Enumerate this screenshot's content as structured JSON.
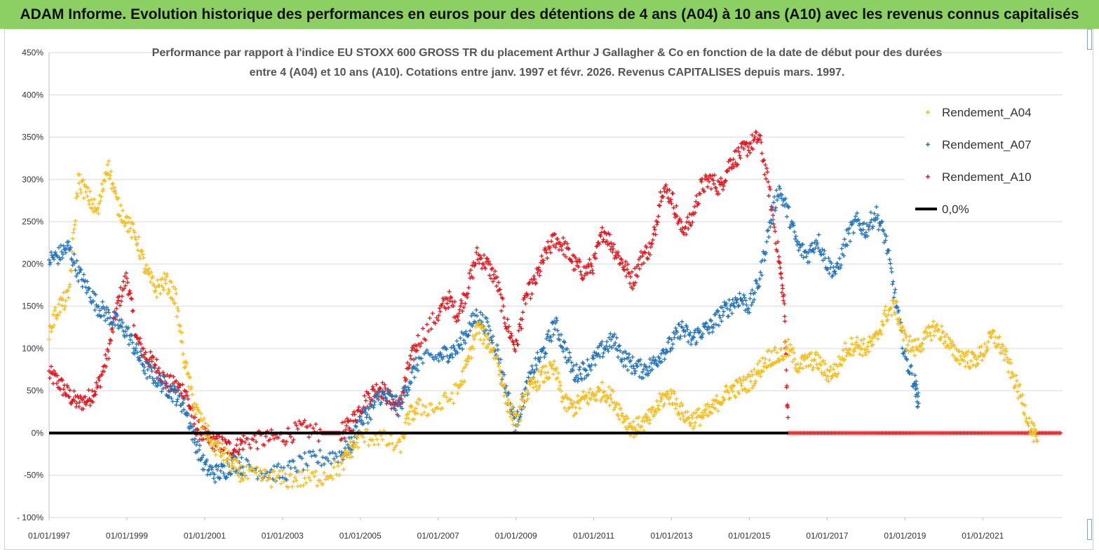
{
  "banner": {
    "title": "ADAM Informe. Evolution historique des performances en euros pour des détentions de 4 ans (A04) à 10 ans (A10) avec les revenus connus capitalisés"
  },
  "chart_data": {
    "type": "scatter",
    "title_lines": [
      "Performance par rapport à l'indice EU STOXX 600 GROSS TR  du placement Arthur J Gallagher & Co en fonction de la date de début pour des durées",
      "entre 4 (A04) et 10 ans (A10). Cotations entre janv. 1997 et févr. 2026. Revenus CAPITALISES depuis mars. 1997."
    ],
    "xlabel": "",
    "ylabel": "",
    "x_range": [
      1997.0,
      2023.05
    ],
    "ylim": [
      -100,
      450
    ],
    "y_ticks": [
      -100,
      -50,
      0,
      50,
      100,
      150,
      200,
      250,
      300,
      350,
      400,
      450
    ],
    "y_tick_labels": [
      "- 100%",
      "-50%",
      "0%",
      "50%",
      "100%",
      "150%",
      "200%",
      "250%",
      "300%",
      "350%",
      "400%",
      "450%"
    ],
    "x_ticks": [
      1997,
      1999,
      2001,
      2003,
      2005,
      2007,
      2009,
      2011,
      2013,
      2015,
      2017,
      2019,
      2021
    ],
    "x_tick_labels": [
      "01/01/1997",
      "01/01/1999",
      "01/01/2001",
      "01/01/2003",
      "01/01/2005",
      "01/01/2007",
      "01/01/2009",
      "01/01/2011",
      "01/01/2013",
      "01/01/2015",
      "01/01/2017",
      "01/01/2019",
      "01/01/2021"
    ],
    "legend_position": "top-right",
    "series": [
      {
        "name": "Rendement_A04",
        "color": "#f5bd1f",
        "marker": "plus",
        "points": [
          [
            1997.0,
            120
          ],
          [
            1997.25,
            150
          ],
          [
            1997.5,
            160
          ],
          [
            1997.75,
            300
          ],
          [
            1998.0,
            280
          ],
          [
            1998.25,
            260
          ],
          [
            1998.5,
            320
          ],
          [
            1998.75,
            270
          ],
          [
            1999.0,
            250
          ],
          [
            1999.25,
            230
          ],
          [
            1999.5,
            190
          ],
          [
            1999.75,
            170
          ],
          [
            2000.0,
            180
          ],
          [
            2000.25,
            160
          ],
          [
            2000.5,
            80
          ],
          [
            2000.75,
            30
          ],
          [
            2001.0,
            5
          ],
          [
            2001.25,
            -15
          ],
          [
            2001.5,
            -25
          ],
          [
            2001.75,
            -40
          ],
          [
            2002.0,
            -50
          ],
          [
            2002.5,
            -52
          ],
          [
            2003.0,
            -55
          ],
          [
            2003.5,
            -55
          ],
          [
            2004.0,
            -52
          ],
          [
            2004.5,
            -40
          ],
          [
            2004.75,
            -20
          ],
          [
            2005.0,
            -5
          ],
          [
            2005.5,
            -5
          ],
          [
            2006.0,
            -18
          ],
          [
            2006.25,
            20
          ],
          [
            2006.5,
            30
          ],
          [
            2007.0,
            30
          ],
          [
            2007.5,
            50
          ],
          [
            2007.75,
            80
          ],
          [
            2008.0,
            125
          ],
          [
            2008.25,
            110
          ],
          [
            2008.5,
            90
          ],
          [
            2008.75,
            40
          ],
          [
            2009.0,
            10
          ],
          [
            2009.25,
            45
          ],
          [
            2009.5,
            60
          ],
          [
            2009.75,
            70
          ],
          [
            2010.0,
            75
          ],
          [
            2010.25,
            35
          ],
          [
            2010.5,
            30
          ],
          [
            2010.75,
            40
          ],
          [
            2011.0,
            45
          ],
          [
            2011.25,
            50
          ],
          [
            2011.5,
            40
          ],
          [
            2011.75,
            20
          ],
          [
            2012.0,
            5
          ],
          [
            2012.25,
            10
          ],
          [
            2012.5,
            20
          ],
          [
            2012.75,
            40
          ],
          [
            2013.0,
            45
          ],
          [
            2013.25,
            25
          ],
          [
            2013.5,
            15
          ],
          [
            2013.75,
            20
          ],
          [
            2014.0,
            25
          ],
          [
            2014.25,
            40
          ],
          [
            2014.5,
            50
          ],
          [
            2014.75,
            55
          ],
          [
            2015.0,
            60
          ],
          [
            2015.25,
            75
          ],
          [
            2015.5,
            90
          ],
          [
            2015.75,
            90
          ],
          [
            2016.0,
            100
          ],
          [
            2016.25,
            80
          ],
          [
            2016.5,
            85
          ],
          [
            2016.75,
            85
          ],
          [
            2017.0,
            70
          ],
          [
            2017.25,
            75
          ],
          [
            2017.5,
            100
          ],
          [
            2017.75,
            105
          ],
          [
            2018.0,
            100
          ],
          [
            2018.25,
            110
          ],
          [
            2018.5,
            140
          ],
          [
            2018.75,
            150
          ],
          [
            2019.0,
            110
          ],
          [
            2019.25,
            100
          ],
          [
            2019.5,
            110
          ],
          [
            2019.75,
            125
          ],
          [
            2020.0,
            115
          ],
          [
            2020.25,
            95
          ],
          [
            2020.5,
            90
          ],
          [
            2020.75,
            85
          ],
          [
            2021.0,
            95
          ],
          [
            2021.25,
            115
          ],
          [
            2021.5,
            100
          ],
          [
            2021.75,
            70
          ],
          [
            2022.0,
            40
          ],
          [
            2022.25,
            5
          ],
          [
            2022.4,
            -10
          ]
        ]
      },
      {
        "name": "Rendement_A07",
        "color": "#2474bc",
        "marker": "plus",
        "points": [
          [
            1997.0,
            205
          ],
          [
            1997.25,
            210
          ],
          [
            1997.5,
            220
          ],
          [
            1997.75,
            190
          ],
          [
            1998.0,
            170
          ],
          [
            1998.25,
            150
          ],
          [
            1998.5,
            140
          ],
          [
            1998.75,
            130
          ],
          [
            1999.0,
            120
          ],
          [
            1999.25,
            95
          ],
          [
            1999.5,
            75
          ],
          [
            1999.75,
            65
          ],
          [
            2000.0,
            55
          ],
          [
            2000.25,
            45
          ],
          [
            2000.5,
            30
          ],
          [
            2000.75,
            -10
          ],
          [
            2001.0,
            -40
          ],
          [
            2001.25,
            -48
          ],
          [
            2001.5,
            -45
          ],
          [
            2001.75,
            -35
          ],
          [
            2002.0,
            -40
          ],
          [
            2002.5,
            -45
          ],
          [
            2003.0,
            -48
          ],
          [
            2003.5,
            -35
          ],
          [
            2004.0,
            -30
          ],
          [
            2004.5,
            -25
          ],
          [
            2004.75,
            -15
          ],
          [
            2005.0,
            15
          ],
          [
            2005.25,
            25
          ],
          [
            2005.5,
            45
          ],
          [
            2005.75,
            40
          ],
          [
            2006.0,
            30
          ],
          [
            2006.25,
            60
          ],
          [
            2006.5,
            85
          ],
          [
            2007.0,
            90
          ],
          [
            2007.25,
            95
          ],
          [
            2007.5,
            100
          ],
          [
            2007.75,
            120
          ],
          [
            2008.0,
            140
          ],
          [
            2008.25,
            125
          ],
          [
            2008.5,
            100
          ],
          [
            2008.75,
            50
          ],
          [
            2009.0,
            10
          ],
          [
            2009.25,
            50
          ],
          [
            2009.5,
            80
          ],
          [
            2009.75,
            100
          ],
          [
            2010.0,
            130
          ],
          [
            2010.25,
            100
          ],
          [
            2010.5,
            70
          ],
          [
            2010.75,
            75
          ],
          [
            2011.0,
            85
          ],
          [
            2011.25,
            100
          ],
          [
            2011.5,
            110
          ],
          [
            2011.75,
            90
          ],
          [
            2012.0,
            80
          ],
          [
            2012.25,
            75
          ],
          [
            2012.5,
            80
          ],
          [
            2012.75,
            95
          ],
          [
            2013.0,
            105
          ],
          [
            2013.25,
            125
          ],
          [
            2013.5,
            110
          ],
          [
            2013.75,
            120
          ],
          [
            2014.0,
            125
          ],
          [
            2014.25,
            140
          ],
          [
            2014.5,
            150
          ],
          [
            2014.75,
            160
          ],
          [
            2015.0,
            150
          ],
          [
            2015.25,
            180
          ],
          [
            2015.5,
            240
          ],
          [
            2015.75,
            290
          ],
          [
            2016.0,
            260
          ],
          [
            2016.25,
            220
          ],
          [
            2016.5,
            210
          ],
          [
            2016.75,
            230
          ],
          [
            2017.0,
            200
          ],
          [
            2017.25,
            190
          ],
          [
            2017.5,
            230
          ],
          [
            2017.75,
            250
          ],
          [
            2018.0,
            240
          ],
          [
            2018.25,
            260
          ],
          [
            2018.5,
            230
          ],
          [
            2018.75,
            160
          ],
          [
            2019.0,
            90
          ],
          [
            2019.25,
            60
          ],
          [
            2019.35,
            35
          ]
        ]
      },
      {
        "name": "Rendement_A10",
        "color": "#e8141b",
        "marker": "plus",
        "points": [
          [
            1997.0,
            70
          ],
          [
            1997.25,
            60
          ],
          [
            1997.5,
            45
          ],
          [
            1997.75,
            35
          ],
          [
            1998.0,
            40
          ],
          [
            1998.25,
            55
          ],
          [
            1998.5,
            90
          ],
          [
            1998.75,
            150
          ],
          [
            1999.0,
            185
          ],
          [
            1999.25,
            110
          ],
          [
            1999.5,
            90
          ],
          [
            1999.75,
            80
          ],
          [
            2000.0,
            60
          ],
          [
            2000.25,
            55
          ],
          [
            2000.5,
            50
          ],
          [
            2000.75,
            10
          ],
          [
            2001.0,
            -5
          ],
          [
            2001.25,
            -10
          ],
          [
            2001.5,
            -15
          ],
          [
            2001.75,
            -20
          ],
          [
            2002.0,
            -10
          ],
          [
            2002.5,
            -8
          ],
          [
            2003.0,
            -5
          ],
          [
            2003.5,
            5
          ],
          [
            2004.0,
            0
          ],
          [
            2004.5,
            0
          ],
          [
            2004.75,
            10
          ],
          [
            2005.0,
            30
          ],
          [
            2005.25,
            45
          ],
          [
            2005.5,
            55
          ],
          [
            2005.75,
            40
          ],
          [
            2006.0,
            30
          ],
          [
            2006.25,
            80
          ],
          [
            2006.5,
            110
          ],
          [
            2007.0,
            140
          ],
          [
            2007.25,
            160
          ],
          [
            2007.5,
            140
          ],
          [
            2007.75,
            170
          ],
          [
            2008.0,
            210
          ],
          [
            2008.25,
            200
          ],
          [
            2008.5,
            180
          ],
          [
            2008.75,
            130
          ],
          [
            2009.0,
            100
          ],
          [
            2009.25,
            160
          ],
          [
            2009.5,
            180
          ],
          [
            2009.75,
            210
          ],
          [
            2010.0,
            230
          ],
          [
            2010.25,
            220
          ],
          [
            2010.5,
            200
          ],
          [
            2010.75,
            190
          ],
          [
            2011.0,
            200
          ],
          [
            2011.25,
            240
          ],
          [
            2011.5,
            220
          ],
          [
            2011.75,
            200
          ],
          [
            2012.0,
            180
          ],
          [
            2012.25,
            210
          ],
          [
            2012.5,
            220
          ],
          [
            2012.75,
            290
          ],
          [
            2013.0,
            280
          ],
          [
            2013.25,
            240
          ],
          [
            2013.5,
            250
          ],
          [
            2013.75,
            290
          ],
          [
            2014.0,
            300
          ],
          [
            2014.25,
            290
          ],
          [
            2014.5,
            320
          ],
          [
            2014.75,
            330
          ],
          [
            2015.0,
            340
          ],
          [
            2015.25,
            350
          ],
          [
            2015.5,
            290
          ],
          [
            2015.75,
            210
          ],
          [
            2015.9,
            150
          ],
          [
            2016.0,
            0
          ],
          [
            2017.0,
            0
          ],
          [
            2018.0,
            0
          ],
          [
            2019.0,
            0
          ],
          [
            2020.0,
            0
          ],
          [
            2021.0,
            0
          ],
          [
            2022.0,
            0
          ],
          [
            2023.0,
            0
          ]
        ]
      },
      {
        "name": "0,0%",
        "color": "#000000",
        "marker": "line",
        "points": [
          [
            1997.0,
            0
          ],
          [
            2016.0,
            0
          ]
        ]
      }
    ]
  }
}
